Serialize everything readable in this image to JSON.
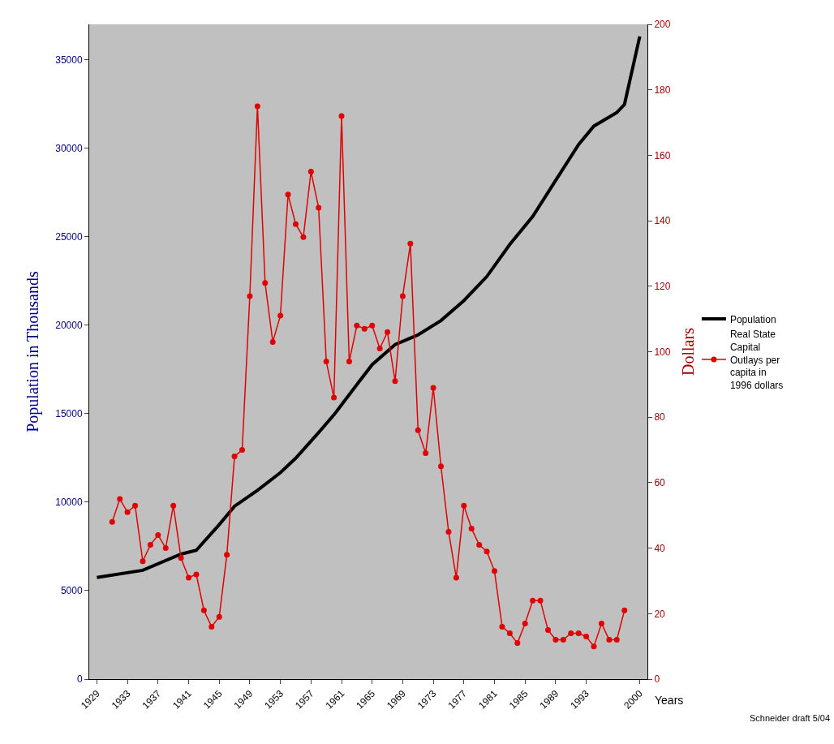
{
  "chart_data": {
    "type": "line",
    "xlabel": "Years",
    "ylabel": "Population in Thousands",
    "y2label": "Dollars",
    "xlim": [
      1928,
      2001
    ],
    "xticks": [
      1929,
      1933,
      1937,
      1941,
      1945,
      1949,
      1953,
      1957,
      1961,
      1965,
      1969,
      1973,
      1977,
      1981,
      1985,
      1989,
      1993,
      2000
    ],
    "ylim": [
      0,
      37000
    ],
    "yticks": [
      0,
      5000,
      10000,
      15000,
      20000,
      25000,
      30000,
      35000
    ],
    "y2lim": [
      0,
      200
    ],
    "y2ticks": [
      0,
      20,
      40,
      60,
      80,
      100,
      120,
      140,
      160,
      180,
      200
    ],
    "grid": false,
    "legend": "right",
    "annotations": [
      "Schneider draft 5/04"
    ],
    "series": [
      {
        "name": "Population",
        "color": "#000000",
        "marker": "none",
        "axis": "y",
        "x": [
          1929,
          1935,
          1940,
          1942,
          1945,
          1947,
          1950,
          1953,
          1955,
          1958,
          1960,
          1963,
          1965,
          1968,
          1971,
          1974,
          1977,
          1980,
          1983,
          1986,
          1989,
          1992,
          1994,
          1997,
          1998,
          2000
        ],
        "values": [
          5740,
          6150,
          7060,
          7280,
          8730,
          9770,
          10670,
          11670,
          12480,
          13930,
          14930,
          16640,
          17770,
          18900,
          19450,
          20260,
          21390,
          22750,
          24560,
          26140,
          28180,
          30210,
          31250,
          32020,
          32470,
          36320
        ]
      },
      {
        "name": "Real State Capital Outlays per capita in 1996 dollars",
        "color": "#e00000",
        "marker": "circle",
        "axis": "y2",
        "x": [
          1931,
          1932,
          1933,
          1934,
          1935,
          1936,
          1937,
          1938,
          1939,
          1940,
          1941,
          1942,
          1943,
          1944,
          1945,
          1946,
          1947,
          1948,
          1949,
          1950,
          1951,
          1952,
          1953,
          1954,
          1955,
          1956,
          1957,
          1958,
          1959,
          1960,
          1961,
          1962,
          1963,
          1964,
          1965,
          1966,
          1967,
          1968,
          1969,
          1970,
          1971,
          1972,
          1973,
          1974,
          1975,
          1976,
          1977,
          1978,
          1979,
          1980,
          1981,
          1982,
          1983,
          1984,
          1985,
          1986,
          1987,
          1988,
          1989,
          1990,
          1991,
          1992,
          1993,
          1994,
          1995,
          1996,
          1997,
          1998
        ],
        "values": [
          48,
          55,
          51,
          53,
          36,
          41,
          44,
          40,
          53,
          37,
          31,
          32,
          21,
          16,
          19,
          38,
          68,
          70,
          117,
          175,
          121,
          103,
          111,
          148,
          139,
          135,
          155,
          144,
          97,
          86,
          172,
          97,
          108,
          107,
          108,
          101,
          106,
          91,
          117,
          133,
          76,
          69,
          89,
          65,
          45,
          31,
          53,
          46,
          41,
          39,
          33,
          16,
          14,
          11,
          17,
          24,
          24,
          15,
          12,
          12,
          14,
          14,
          13,
          10,
          17,
          12,
          12,
          21
        ]
      }
    ]
  }
}
